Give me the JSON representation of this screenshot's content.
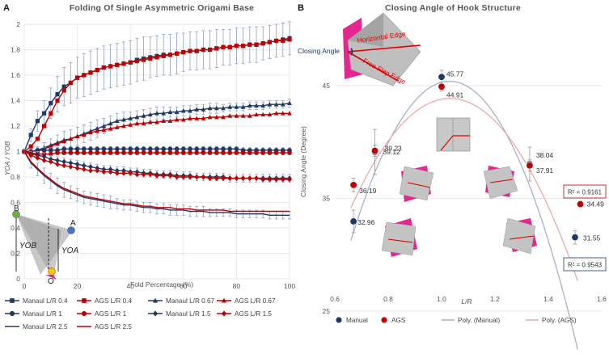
{
  "panels": [
    {
      "letter": "A",
      "title": "Folding Of Single Asymmetric Origami Base"
    },
    {
      "letter": "B",
      "title": "Closing Angle of Hook Structure"
    }
  ],
  "colors": {
    "navy": "#1f3864",
    "red": "#c00000",
    "grid": "#e3e3e3",
    "trendManual": "#a8b0c8",
    "trendAGS": "#eba9a9"
  },
  "chart_data": [
    {
      "type": "line",
      "title": "Folding Of Single Asymmetric Origami Base",
      "xlabel": "Fold Percentage (%)",
      "ylabel": "YOA / YOB",
      "xlim": [
        0,
        100
      ],
      "ylim": [
        0,
        2
      ],
      "xticks": [
        0,
        20,
        40,
        60,
        80,
        100
      ],
      "yticks": [
        0,
        0.2,
        0.4,
        0.6,
        0.8,
        1,
        1.2,
        1.4,
        1.6,
        1.8,
        2
      ],
      "grid": true,
      "x": [
        0,
        2.5,
        5,
        7.5,
        10,
        12.5,
        15,
        17.5,
        20,
        22.5,
        25,
        27.5,
        30,
        32.5,
        35,
        37.5,
        40,
        42.5,
        45,
        47.5,
        50,
        52.5,
        55,
        57.5,
        60,
        62.5,
        65,
        67.5,
        70,
        72.5,
        75,
        77.5,
        80,
        82.5,
        85,
        87.5,
        90,
        92.5,
        95,
        97.5,
        100
      ],
      "series": [
        {
          "name": "Manaul L/R 0.4",
          "color": "#1f3864",
          "marker": "square",
          "values": [
            1.0,
            1.13,
            1.24,
            1.3,
            1.38,
            1.45,
            1.51,
            1.54,
            1.58,
            1.6,
            1.62,
            1.64,
            1.66,
            1.67,
            1.68,
            1.69,
            1.7,
            1.72,
            1.73,
            1.74,
            1.75,
            1.76,
            1.76,
            1.77,
            1.78,
            1.79,
            1.79,
            1.8,
            1.8,
            1.81,
            1.82,
            1.82,
            1.83,
            1.83,
            1.84,
            1.84,
            1.85,
            1.86,
            1.87,
            1.88,
            1.89
          ],
          "err": [
            0.02,
            0.05,
            0.08,
            0.1,
            0.12,
            0.14,
            0.15,
            0.16,
            0.16,
            0.17,
            0.17,
            0.17,
            0.17,
            0.17,
            0.17,
            0.17,
            0.17,
            0.17,
            0.17,
            0.16,
            0.16,
            0.16,
            0.16,
            0.16,
            0.15,
            0.15,
            0.15,
            0.15,
            0.15,
            0.15,
            0.14,
            0.14,
            0.14,
            0.14,
            0.14,
            0.14,
            0.13,
            0.13,
            0.13,
            0.13,
            0.13
          ]
        },
        {
          "name": "AGS L/R 0.4",
          "color": "#c00000",
          "marker": "square",
          "values": [
            1.0,
            1.04,
            1.1,
            1.2,
            1.3,
            1.4,
            1.48,
            1.54,
            1.58,
            1.6,
            1.62,
            1.64,
            1.66,
            1.67,
            1.68,
            1.69,
            1.7,
            1.71,
            1.72,
            1.73,
            1.74,
            1.75,
            1.76,
            1.77,
            1.78,
            1.79,
            1.79,
            1.8,
            1.8,
            1.81,
            1.82,
            1.82,
            1.83,
            1.83,
            1.84,
            1.84,
            1.85,
            1.86,
            1.87,
            1.87,
            1.88
          ],
          "err": []
        },
        {
          "name": "Manaul L/R 0.67",
          "color": "#1f3864",
          "marker": "triangle",
          "values": [
            1.0,
            1.0,
            1.01,
            1.03,
            1.05,
            1.07,
            1.09,
            1.1,
            1.12,
            1.14,
            1.16,
            1.18,
            1.2,
            1.22,
            1.24,
            1.25,
            1.26,
            1.27,
            1.28,
            1.29,
            1.3,
            1.3,
            1.31,
            1.31,
            1.32,
            1.32,
            1.33,
            1.33,
            1.34,
            1.34,
            1.34,
            1.35,
            1.35,
            1.35,
            1.36,
            1.36,
            1.36,
            1.37,
            1.37,
            1.37,
            1.38
          ],
          "err": [
            0.01,
            0.02,
            0.03,
            0.04,
            0.05,
            0.06,
            0.07,
            0.07,
            0.07,
            0.07,
            0.07,
            0.07,
            0.06,
            0.06,
            0.06,
            0.06,
            0.05,
            0.05,
            0.05,
            0.05,
            0.05,
            0.05,
            0.04,
            0.04,
            0.04,
            0.04,
            0.04,
            0.04,
            0.04,
            0.04,
            0.03,
            0.03,
            0.03,
            0.03,
            0.03,
            0.03,
            0.03,
            0.03,
            0.03,
            0.03,
            0.03
          ]
        },
        {
          "name": "AGS L/R 0.67",
          "color": "#c00000",
          "marker": "triangle",
          "values": [
            1.0,
            1.0,
            1.01,
            1.02,
            1.04,
            1.06,
            1.08,
            1.1,
            1.12,
            1.13,
            1.15,
            1.16,
            1.17,
            1.18,
            1.19,
            1.2,
            1.21,
            1.22,
            1.22,
            1.23,
            1.23,
            1.24,
            1.24,
            1.25,
            1.25,
            1.26,
            1.26,
            1.26,
            1.27,
            1.27,
            1.27,
            1.28,
            1.28,
            1.28,
            1.28,
            1.29,
            1.29,
            1.29,
            1.3,
            1.3,
            1.3
          ],
          "err": []
        },
        {
          "name": "Manaul L/R 1",
          "color": "#1f3864",
          "marker": "circle",
          "values": [
            1.0,
            1.0,
            1.01,
            1.01,
            1.01,
            1.01,
            1.02,
            1.02,
            1.02,
            1.02,
            1.02,
            1.02,
            1.02,
            1.02,
            1.02,
            1.02,
            1.02,
            1.02,
            1.02,
            1.02,
            1.02,
            1.02,
            1.02,
            1.02,
            1.02,
            1.02,
            1.02,
            1.02,
            1.02,
            1.02,
            1.02,
            1.02,
            1.02,
            1.01,
            1.01,
            1.01,
            1.01,
            1.01,
            1.01,
            1.01,
            1.01
          ],
          "err": [
            0.02,
            0.02,
            0.02,
            0.02,
            0.02,
            0.02,
            0.02,
            0.02,
            0.02,
            0.02,
            0.02,
            0.02,
            0.02,
            0.02,
            0.02,
            0.02,
            0.02,
            0.02,
            0.02,
            0.02,
            0.02,
            0.02,
            0.02,
            0.02,
            0.02,
            0.02,
            0.02,
            0.02,
            0.02,
            0.02,
            0.02,
            0.02,
            0.02,
            0.02,
            0.02,
            0.02,
            0.02,
            0.02,
            0.02,
            0.02,
            0.02
          ]
        },
        {
          "name": "AGS L/R 1",
          "color": "#c00000",
          "marker": "circle",
          "values": [
            1.0,
            0.99,
            0.98,
            0.98,
            0.98,
            0.99,
            0.99,
            0.99,
            0.99,
            0.99,
            0.99,
            0.99,
            0.99,
            0.99,
            0.99,
            0.99,
            0.99,
            0.99,
            0.99,
            0.99,
            0.99,
            0.99,
            0.99,
            0.99,
            0.99,
            0.99,
            0.99,
            0.99,
            0.99,
            0.99,
            0.99,
            0.99,
            0.99,
            0.99,
            0.99,
            0.99,
            0.99,
            0.99,
            0.99,
            0.99,
            0.99
          ],
          "err": []
        },
        {
          "name": "Manaul L/R 1.5",
          "color": "#1f3864",
          "marker": "diamond",
          "values": [
            1.0,
            0.98,
            0.97,
            0.96,
            0.94,
            0.93,
            0.92,
            0.91,
            0.9,
            0.89,
            0.88,
            0.87,
            0.86,
            0.86,
            0.85,
            0.85,
            0.84,
            0.84,
            0.83,
            0.83,
            0.82,
            0.82,
            0.82,
            0.81,
            0.81,
            0.81,
            0.8,
            0.8,
            0.8,
            0.8,
            0.8,
            0.79,
            0.79,
            0.79,
            0.79,
            0.79,
            0.79,
            0.79,
            0.79,
            0.79,
            0.79
          ],
          "err": [
            0.01,
            0.02,
            0.03,
            0.03,
            0.03,
            0.03,
            0.03,
            0.03,
            0.03,
            0.03,
            0.03,
            0.03,
            0.03,
            0.03,
            0.03,
            0.03,
            0.03,
            0.03,
            0.03,
            0.03,
            0.03,
            0.03,
            0.03,
            0.03,
            0.03,
            0.03,
            0.03,
            0.03,
            0.03,
            0.03,
            0.03,
            0.03,
            0.03,
            0.03,
            0.03,
            0.03,
            0.03,
            0.03,
            0.03,
            0.03,
            0.03
          ]
        },
        {
          "name": "AGS L/R 1.5",
          "color": "#c00000",
          "marker": "diamond",
          "values": [
            1.0,
            0.97,
            0.95,
            0.93,
            0.92,
            0.9,
            0.89,
            0.88,
            0.87,
            0.86,
            0.85,
            0.85,
            0.84,
            0.84,
            0.83,
            0.83,
            0.83,
            0.82,
            0.82,
            0.82,
            0.81,
            0.81,
            0.81,
            0.8,
            0.8,
            0.8,
            0.8,
            0.8,
            0.79,
            0.79,
            0.79,
            0.79,
            0.79,
            0.79,
            0.79,
            0.79,
            0.78,
            0.78,
            0.78,
            0.78,
            0.78
          ],
          "err": []
        },
        {
          "name": "Manaul L/R 2.5",
          "color": "#1f3864",
          "marker": "none",
          "values": [
            1.0,
            0.91,
            0.86,
            0.81,
            0.77,
            0.73,
            0.7,
            0.68,
            0.66,
            0.64,
            0.63,
            0.62,
            0.61,
            0.6,
            0.59,
            0.58,
            0.58,
            0.57,
            0.56,
            0.56,
            0.55,
            0.55,
            0.54,
            0.54,
            0.54,
            0.53,
            0.53,
            0.53,
            0.52,
            0.52,
            0.52,
            0.52,
            0.51,
            0.51,
            0.51,
            0.51,
            0.51,
            0.5,
            0.5,
            0.5,
            0.5
          ],
          "err": [
            0.02,
            0.04,
            0.05,
            0.06,
            0.06,
            0.06,
            0.06,
            0.05,
            0.05,
            0.05,
            0.05,
            0.05,
            0.05,
            0.05,
            0.04,
            0.04,
            0.04,
            0.04,
            0.04,
            0.04,
            0.04,
            0.04,
            0.04,
            0.04,
            0.04,
            0.04,
            0.04,
            0.04,
            0.03,
            0.03,
            0.03,
            0.03,
            0.03,
            0.03,
            0.03,
            0.03,
            0.03,
            0.03,
            0.03,
            0.03,
            0.03
          ]
        },
        {
          "name": "AGS L/R 2.5",
          "color": "#c00000",
          "marker": "none",
          "values": [
            1.0,
            0.92,
            0.87,
            0.82,
            0.78,
            0.74,
            0.71,
            0.69,
            0.67,
            0.65,
            0.64,
            0.63,
            0.62,
            0.61,
            0.6,
            0.59,
            0.59,
            0.58,
            0.57,
            0.57,
            0.56,
            0.56,
            0.56,
            0.55,
            0.55,
            0.55,
            0.54,
            0.54,
            0.54,
            0.54,
            0.54,
            0.53,
            0.53,
            0.53,
            0.53,
            0.53,
            0.53,
            0.53,
            0.53,
            0.53,
            0.53
          ],
          "err": []
        }
      ],
      "legend": [
        "Manaul L/R 0.4",
        "AGS L/R 0.4",
        "Manaul L/R 0.67",
        "AGS L/R 0.67",
        "Manaul L/R 1",
        "AGS L/R 1",
        "Manaul L/R 1.5",
        "AGS L/R 1.5",
        "Manaul L/R 2.5",
        "AGS L/R 2.5"
      ],
      "legend_position": "bottom",
      "inset_labels": {
        "B": "B",
        "A": "A",
        "O": "O",
        "YOB": "YOB",
        "YOA": "YOA"
      }
    },
    {
      "type": "scatter",
      "title": "Closing Angle of Hook Structure",
      "xlabel": "L/R",
      "ylabel": "Closing Angle (Degree)",
      "xlim": [
        0.6,
        1.6
      ],
      "ylim": [
        25,
        45
      ],
      "xticks": [
        0.6,
        0.8,
        1.0,
        1.2,
        1.4,
        1.6
      ],
      "xtick_labels": [
        "0.6",
        "0.8",
        "1.0",
        "1.2",
        "1.4",
        "1.6"
      ],
      "yticks": [
        25,
        35,
        45
      ],
      "grid": true,
      "series": [
        {
          "name": "Manual",
          "color": "#1f3864",
          "points": [
            {
              "x": 0.67,
              "y": 32.96,
              "err": 1.0
            },
            {
              "x": 0.75,
              "y": 39.12,
              "err": 2.0
            },
            {
              "x": 1.0,
              "y": 45.77,
              "err": 0.6
            },
            {
              "x": 1.33,
              "y": 38.04,
              "err": 1.5
            },
            {
              "x": 1.5,
              "y": 31.55,
              "err": 0.6
            }
          ]
        },
        {
          "name": "AGS",
          "color": "#c00000",
          "points": [
            {
              "x": 0.67,
              "y": 36.19,
              "err": 0.6
            },
            {
              "x": 0.75,
              "y": 39.23,
              "err": 0.5
            },
            {
              "x": 1.0,
              "y": 44.91,
              "err": 0.4
            },
            {
              "x": 1.33,
              "y": 37.91,
              "err": 0.5
            },
            {
              "x": 1.52,
              "y": 34.49,
              "err": 0.3
            }
          ]
        },
        {
          "name": "Poly. (Manual)",
          "color": "#a8b0c8",
          "type": "trend",
          "coef": [
            -103.3,
            212.8,
            -64.2
          ]
        },
        {
          "name": "Poly. (AGS)",
          "color": "#eba9a9",
          "type": "trend",
          "coef": [
            -70.6,
            145.6,
            -31.2
          ]
        }
      ],
      "annotations": [
        {
          "text": "R² = 0.9161",
          "color": "#c00000"
        },
        {
          "text": "R² = 0.9543",
          "color": "#1f3864"
        }
      ],
      "inset_labels": {
        "closing": "Closing Angle",
        "horizontal": "Horizontal Edge",
        "free": "Free Flap Edge"
      },
      "legend": [
        "Manual",
        "AGS",
        "Poly. (Manual)",
        "Poly. (AGS)"
      ],
      "legend_position": "bottom"
    }
  ]
}
